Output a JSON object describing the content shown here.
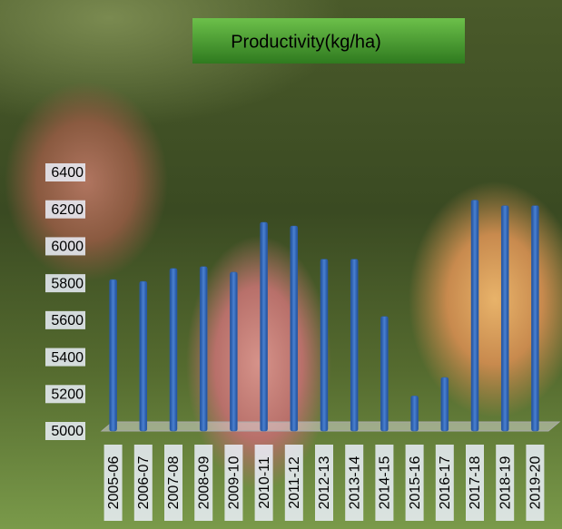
{
  "chart_data": {
    "type": "bar",
    "title": "Productivity(kg/ha)",
    "categories": [
      "2005-06",
      "2006-07",
      "2007-08",
      "2008-09",
      "2009-10",
      "2010-11",
      "2011-12",
      "2012-13",
      "2013-14",
      "2014-15",
      "2015-16",
      "2016-17",
      "2017-18",
      "2018-19",
      "2019-20"
    ],
    "values": [
      5820,
      5810,
      5880,
      5890,
      5860,
      6130,
      6110,
      5930,
      5930,
      5620,
      5190,
      5290,
      6250,
      6220,
      6220
    ],
    "color": "#2e5fa8",
    "ylim": [
      5000,
      6400
    ],
    "yticks": [
      5000,
      5200,
      5400,
      5600,
      5800,
      6000,
      6200,
      6400
    ]
  }
}
